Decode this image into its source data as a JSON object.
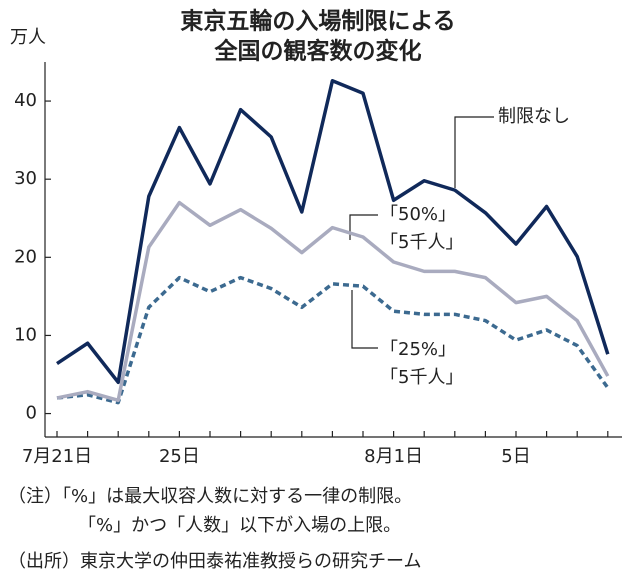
{
  "chart_data": {
    "type": "line",
    "title_lines": [
      "東京五輪の入場制限による",
      "全国の観客数の変化"
    ],
    "y_unit": "万人",
    "categories": [
      "7月21日",
      null,
      null,
      null,
      "25日",
      null,
      null,
      null,
      null,
      null,
      null,
      "8月1日",
      null,
      null,
      null,
      "5日",
      null,
      null,
      null
    ],
    "series": [
      {
        "name_lines": [
          "制限なし"
        ],
        "color": "#10295a",
        "dash": false,
        "values": [
          6.4,
          9.0,
          4.0,
          27.8,
          36.6,
          29.4,
          38.9,
          35.4,
          25.8,
          42.6,
          41.0,
          27.3,
          29.8,
          28.6,
          25.7,
          21.7,
          26.5,
          20.1,
          7.6
        ]
      },
      {
        "name_lines": [
          "「50%」",
          "「5千人」"
        ],
        "color": "#a9abbf",
        "dash": false,
        "values": [
          2.0,
          2.8,
          1.7,
          21.3,
          27.0,
          24.1,
          26.1,
          23.7,
          20.6,
          23.8,
          22.6,
          19.4,
          18.2,
          18.2,
          17.4,
          14.2,
          15.0,
          11.9,
          4.8
        ]
      },
      {
        "name_lines": [
          "「25%」",
          "「5千人」"
        ],
        "color": "#3c6a90",
        "dash": true,
        "values": [
          2.0,
          2.4,
          1.4,
          13.6,
          17.4,
          15.6,
          17.4,
          16.0,
          13.6,
          16.6,
          16.3,
          13.1,
          12.7,
          12.7,
          11.9,
          9.4,
          10.7,
          8.7,
          3.3
        ]
      }
    ],
    "ylim": [
      -3,
      45
    ],
    "yticks": [
      0,
      10,
      20,
      30,
      40
    ],
    "notes": [
      "（注）「%」は最大収容人数に対する一律の制限。",
      "「%」かつ「人数」以下が入場の上限。",
      "（出所）東京大学の仲田泰祐准教授らの研究チーム"
    ]
  }
}
